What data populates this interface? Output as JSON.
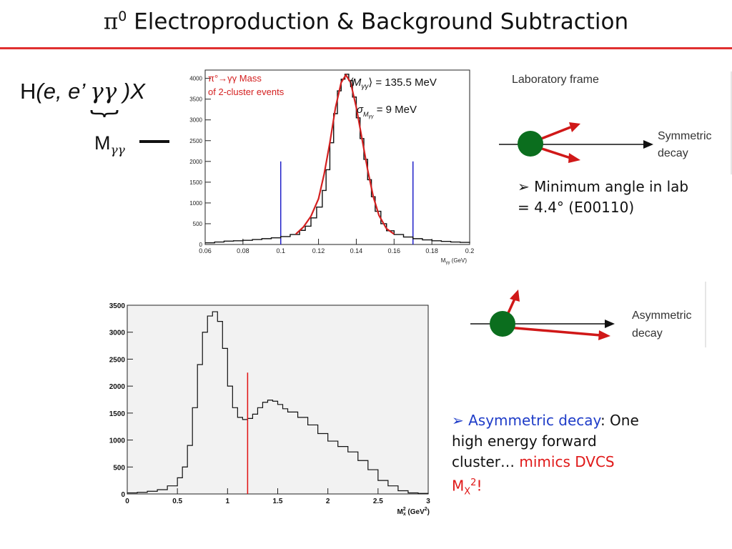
{
  "slide": {
    "title_symbol": "π",
    "title_sup": "0",
    "title_rest": " Electroproduction & Background Subtraction",
    "reaction_prefix": "H",
    "reaction_mid": "(e, e’ ",
    "reaction_gg": "γγ",
    "reaction_suffix": " )X",
    "mass_label": "M",
    "mass_sub": "γγ",
    "lab_frame_label": "Laboratory frame",
    "symmetric_label_1": "Symmetric",
    "symmetric_label_2": "decay",
    "asymmetric_label_1": "Asymmetric",
    "asymmetric_label_2": "decay",
    "note1_bullet": "➢",
    "note1_line1": " Minimum angle in lab",
    "note1_line2": "= 4.4°   (E00110)",
    "note2_bullet": "➢",
    "note2_blue": " Asymmetric decay",
    "note2_text1": ": One",
    "note2_line2": "high energy forward",
    "note2_line3a": "cluster… ",
    "note2_red": "mimics DVCS",
    "note2_line4": "M",
    "note2_sub": "X",
    "note2_sup": "2",
    "note2_end": "!",
    "colors": {
      "title_rule": "#e03030",
      "fit_curve": "#d42020",
      "cut_lines": "#2020c8",
      "cut_red": "#e01010",
      "ball": "#0b6e1e",
      "arrow_red": "#d01818",
      "blue_text": "#1e3cc8"
    }
  },
  "chart_data": [
    {
      "type": "line",
      "annotation_title_1": "π°→γγ Mass",
      "annotation_title_2": "of 2-cluster events",
      "mean_text": "⟨M",
      "mean_sub": "γγ",
      "mean_value": "⟩ = 135.5 MeV",
      "sigma_text": "σ",
      "sigma_sub": "M",
      "sigma_sub2": "γγ",
      "sigma_value": " = 9 MeV",
      "xlabel": "M",
      "xlabel_sub": "γγ",
      "xlabel_unit": " (GeV)",
      "xlim": [
        0.06,
        0.2
      ],
      "ylim": [
        0,
        4200
      ],
      "xticks": [
        "0.06",
        "0.08",
        "0.1",
        "0.12",
        "0.14",
        "0.16",
        "0.18",
        "0.2"
      ],
      "yticks": [
        "0",
        "500",
        "1000",
        "1500",
        "2000",
        "2500",
        "3000",
        "3500",
        "4000"
      ],
      "cuts": [
        0.1,
        0.17
      ],
      "series": [
        {
          "name": "data",
          "x": [
            0.06,
            0.065,
            0.07,
            0.075,
            0.08,
            0.085,
            0.09,
            0.095,
            0.1,
            0.105,
            0.11,
            0.113,
            0.116,
            0.119,
            0.122,
            0.124,
            0.126,
            0.128,
            0.13,
            0.132,
            0.134,
            0.136,
            0.138,
            0.14,
            0.142,
            0.144,
            0.146,
            0.148,
            0.15,
            0.153,
            0.156,
            0.16,
            0.165,
            0.17,
            0.175,
            0.18,
            0.185,
            0.19,
            0.195,
            0.2
          ],
          "y": [
            40,
            60,
            80,
            90,
            100,
            120,
            140,
            160,
            190,
            240,
            340,
            440,
            640,
            900,
            1300,
            1800,
            2450,
            3150,
            3700,
            3980,
            4100,
            3950,
            3550,
            3050,
            2550,
            2050,
            1560,
            1150,
            800,
            500,
            330,
            240,
            180,
            140,
            110,
            90,
            75,
            60,
            50,
            40
          ]
        },
        {
          "name": "fit",
          "x": [
            0.108,
            0.112,
            0.116,
            0.12,
            0.123,
            0.126,
            0.129,
            0.132,
            0.1345,
            0.137,
            0.14,
            0.143,
            0.146,
            0.149,
            0.152,
            0.156,
            0.16
          ],
          "y": [
            250,
            420,
            680,
            1100,
            1700,
            2450,
            3300,
            3900,
            4080,
            3900,
            3300,
            2550,
            1800,
            1150,
            700,
            380,
            250
          ]
        }
      ]
    },
    {
      "type": "line",
      "xlabel": "M",
      "xlabel_sub": "x",
      "xlabel_sup": "2",
      "xlabel_unit": " (GeV",
      "xlabel_unit_sup": "2",
      "xlabel_unit_end": ")",
      "xlim": [
        0,
        3
      ],
      "ylim": [
        0,
        3500
      ],
      "xticks": [
        "0",
        "0.5",
        "1",
        "1.5",
        "2",
        "2.5",
        "3"
      ],
      "yticks": [
        "0",
        "500",
        "1000",
        "1500",
        "2000",
        "2500",
        "3000",
        "3500"
      ],
      "cuts": [
        1.2
      ],
      "series": [
        {
          "name": "data",
          "x": [
            0,
            0.1,
            0.2,
            0.3,
            0.4,
            0.5,
            0.55,
            0.6,
            0.65,
            0.7,
            0.75,
            0.8,
            0.85,
            0.9,
            0.95,
            1.0,
            1.05,
            1.1,
            1.15,
            1.2,
            1.25,
            1.3,
            1.35,
            1.4,
            1.45,
            1.5,
            1.55,
            1.6,
            1.7,
            1.8,
            1.9,
            2.0,
            2.1,
            2.2,
            2.3,
            2.4,
            2.5,
            2.6,
            2.7,
            2.8,
            2.9,
            3.0
          ],
          "y": [
            20,
            30,
            50,
            80,
            150,
            300,
            500,
            900,
            1600,
            2400,
            3000,
            3300,
            3380,
            3200,
            2700,
            2000,
            1600,
            1420,
            1380,
            1400,
            1480,
            1600,
            1700,
            1740,
            1720,
            1660,
            1580,
            1520,
            1420,
            1280,
            1120,
            980,
            880,
            780,
            620,
            450,
            250,
            150,
            60,
            20,
            10,
            0
          ]
        }
      ]
    }
  ]
}
